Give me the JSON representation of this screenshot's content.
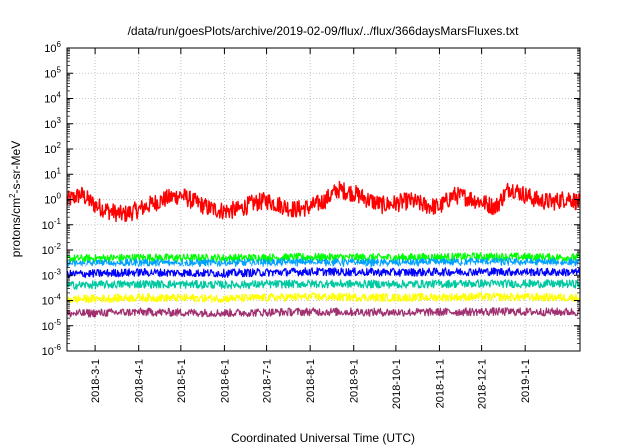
{
  "chart_data": {
    "type": "line",
    "title": "/data/run/goesPlots/archive/2019-02-09/flux/../flux/366daysMarsFluxes.txt",
    "xlabel": "Coordinated Universal Time (UTC)",
    "ylabel": {
      "base": "protons/cm",
      "sup": "2",
      "rest": "-s-sr-MeV"
    },
    "yscale": "log",
    "ylim": [
      1e-06,
      1000000.0
    ],
    "xlim": [
      "2018-02-09",
      "2019-02-09"
    ],
    "grid": true,
    "y_ticks": [
      {
        "value": 1e-06,
        "base": "10",
        "exp": "-6"
      },
      {
        "value": 1e-05,
        "base": "10",
        "exp": "-5"
      },
      {
        "value": 0.0001,
        "base": "10",
        "exp": "-4"
      },
      {
        "value": 0.001,
        "base": "10",
        "exp": "-3"
      },
      {
        "value": 0.01,
        "base": "10",
        "exp": "-2"
      },
      {
        "value": 0.1,
        "base": "10",
        "exp": "-1"
      },
      {
        "value": 1,
        "base": "10",
        "exp": "0"
      },
      {
        "value": 10,
        "base": "10",
        "exp": "1"
      },
      {
        "value": 100,
        "base": "10",
        "exp": "2"
      },
      {
        "value": 1000,
        "base": "10",
        "exp": "3"
      },
      {
        "value": 10000,
        "base": "10",
        "exp": "4"
      },
      {
        "value": 100000,
        "base": "10",
        "exp": "5"
      },
      {
        "value": 1000000,
        "base": "10",
        "exp": "6"
      }
    ],
    "x_ticks": [
      "2018-3-1",
      "2018-4-1",
      "2018-5-1",
      "2018-6-1",
      "2018-7-1",
      "2018-8-1",
      "2018-9-1",
      "2018-10-1",
      "2018-11-1",
      "2018-12-1",
      "2019-1-1"
    ],
    "series": [
      {
        "color": "#ff0000",
        "dates": [
          "2018-02-09",
          "2018-02-19",
          "2018-03-01",
          "2018-03-11",
          "2018-03-21",
          "2018-04-01",
          "2018-04-11",
          "2018-04-21",
          "2018-05-01",
          "2018-05-11",
          "2018-05-21",
          "2018-06-01",
          "2018-06-11",
          "2018-06-21",
          "2018-07-01",
          "2018-07-11",
          "2018-07-21",
          "2018-08-01",
          "2018-08-11",
          "2018-08-21",
          "2018-09-01",
          "2018-09-11",
          "2018-09-21",
          "2018-10-01",
          "2018-10-11",
          "2018-10-21",
          "2018-11-01",
          "2018-11-11",
          "2018-11-21",
          "2018-12-01",
          "2018-12-11",
          "2018-12-21",
          "2019-01-01",
          "2019-01-11",
          "2019-01-21",
          "2019-02-01",
          "2019-02-09"
        ],
        "values": [
          0.9,
          1.6,
          0.6,
          0.35,
          0.25,
          0.4,
          0.7,
          1.1,
          1.5,
          0.8,
          0.45,
          0.35,
          0.4,
          0.7,
          0.9,
          0.6,
          0.4,
          0.5,
          0.9,
          2.5,
          1.8,
          1.0,
          0.6,
          0.7,
          0.9,
          0.6,
          0.5,
          1.5,
          1.2,
          0.8,
          0.5,
          3.0,
          1.5,
          0.9,
          0.8,
          1.2,
          0.7
        ]
      },
      {
        "color": "#00ff00",
        "dates": [
          "2018-02-09",
          "2018-04-01",
          "2018-06-01",
          "2018-08-01",
          "2018-10-01",
          "2018-12-01",
          "2019-02-09"
        ],
        "values": [
          0.0045,
          0.005,
          0.0048,
          0.0052,
          0.005,
          0.0055,
          0.005
        ]
      },
      {
        "color": "#00a0ff",
        "dates": [
          "2018-02-09",
          "2018-04-01",
          "2018-06-01",
          "2018-08-01",
          "2018-10-01",
          "2018-12-01",
          "2019-02-09"
        ],
        "values": [
          0.0028,
          0.0031,
          0.003,
          0.0032,
          0.003,
          0.0034,
          0.0031
        ]
      },
      {
        "color": "#ffffff",
        "dates": [
          "2018-02-09",
          "2018-04-01",
          "2018-06-01",
          "2018-08-01",
          "2018-10-01",
          "2018-12-01",
          "2019-02-09"
        ],
        "values": [
          0.0018,
          0.002,
          0.0019,
          0.0021,
          0.002,
          0.0022,
          0.002
        ]
      },
      {
        "color": "#0000ff",
        "dates": [
          "2018-02-09",
          "2018-04-01",
          "2018-06-01",
          "2018-08-01",
          "2018-10-01",
          "2018-12-01",
          "2019-02-09"
        ],
        "values": [
          0.0011,
          0.0013,
          0.0012,
          0.0014,
          0.0013,
          0.0014,
          0.0013
        ]
      },
      {
        "color": "#00c8a0",
        "dates": [
          "2018-02-09",
          "2018-04-01",
          "2018-06-01",
          "2018-08-01",
          "2018-10-01",
          "2018-12-01",
          "2019-02-09"
        ],
        "values": [
          0.0004,
          0.00045,
          0.00042,
          0.00046,
          0.00044,
          0.00047,
          0.00045
        ]
      },
      {
        "color": "#ffff00",
        "dates": [
          "2018-02-09",
          "2018-04-01",
          "2018-06-01",
          "2018-08-01",
          "2018-10-01",
          "2018-12-01",
          "2019-02-09"
        ],
        "values": [
          0.00011,
          0.00013,
          0.00012,
          0.00014,
          0.00013,
          0.00014,
          0.00013
        ]
      },
      {
        "color": "#a03070",
        "dates": [
          "2018-02-09",
          "2018-04-01",
          "2018-06-01",
          "2018-08-01",
          "2018-10-01",
          "2018-12-01",
          "2019-02-09"
        ],
        "values": [
          3e-05,
          3.5e-05,
          3.2e-05,
          3.6e-05,
          3.4e-05,
          3.6e-05,
          3.5e-05
        ]
      }
    ]
  }
}
